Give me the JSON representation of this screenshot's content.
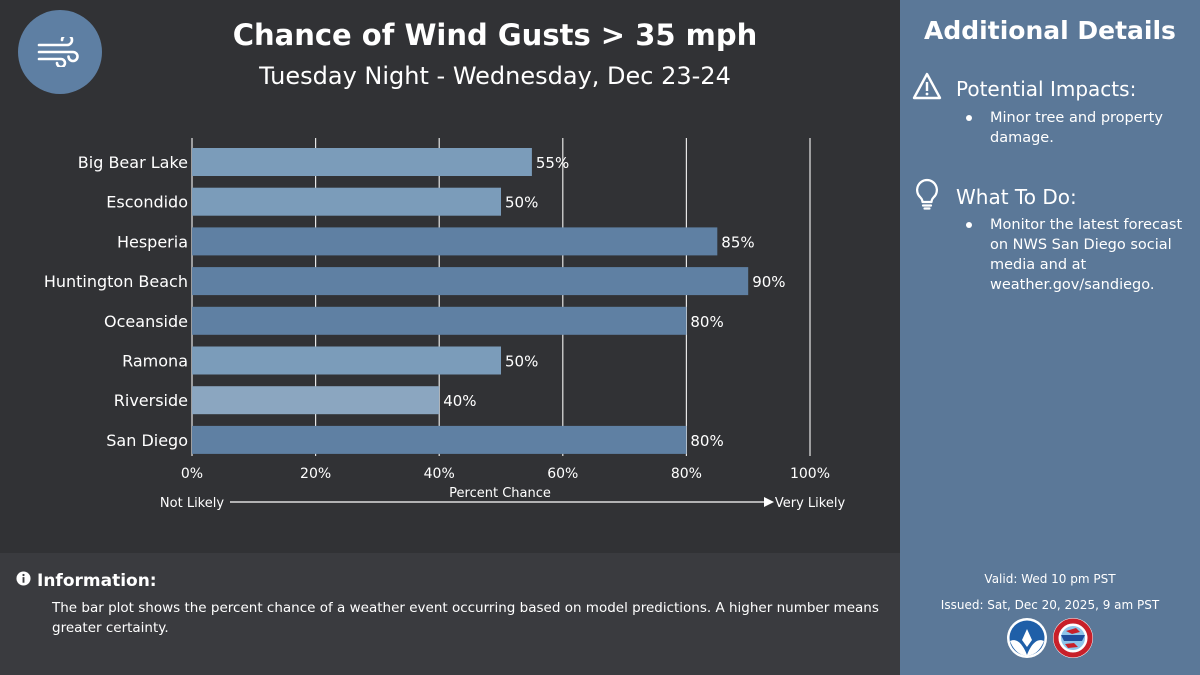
{
  "header": {
    "icon": "wind-icon",
    "title": "Chance of Wind Gusts > 35 mph",
    "subtitle": "Tuesday Night - Wednesday, Dec 23-24"
  },
  "chart_data": {
    "type": "bar",
    "orientation": "horizontal",
    "categories": [
      "Big Bear Lake",
      "Escondido",
      "Hesperia",
      "Huntington Beach",
      "Oceanside",
      "Ramona",
      "Riverside",
      "San Diego"
    ],
    "values": [
      55,
      50,
      85,
      90,
      80,
      50,
      40,
      80
    ],
    "value_labels": [
      "55%",
      "50%",
      "85%",
      "90%",
      "80%",
      "50%",
      "40%",
      "80%"
    ],
    "xlim": [
      0,
      100
    ],
    "xticks": [
      0,
      20,
      40,
      60,
      80,
      100
    ],
    "xtick_labels": [
      "0%",
      "20%",
      "40%",
      "60%",
      "80%",
      "100%"
    ],
    "xlabel": "Percent Chance",
    "scale_left_label": "Not Likely",
    "scale_right_label": "Very Likely",
    "grid": "vertical",
    "colors": {
      "bar_low": "#8ba6c0",
      "bar_mid": "#7b9cba",
      "bar_high": "#5f80a3",
      "grid": "#e6e6e6"
    }
  },
  "info": {
    "icon": "info-icon",
    "heading": "Information:",
    "text": "The bar plot shows the percent chance of a weather event occurring based on model predictions. A higher number means greater certainty."
  },
  "side": {
    "title": "Additional Details",
    "impacts": {
      "icon": "warning-icon",
      "heading": "Potential Impacts:",
      "items": [
        "Minor tree and property damage."
      ]
    },
    "todo": {
      "icon": "lightbulb-icon",
      "heading": "What To Do:",
      "items": [
        "Monitor the latest forecast on NWS San Diego social media and at weather.gov/sandiego."
      ]
    },
    "valid": "Valid: Wed 10 pm PST",
    "issued": "Issued: Sat, Dec 20, 2025, 9 am PST",
    "logos": [
      "noaa-logo",
      "nws-logo"
    ]
  },
  "colors": {
    "main_bg": "#313235",
    "info_bg": "#3a3b3f",
    "side_bg": "#5b7898",
    "accent": "#5e7fa3"
  }
}
